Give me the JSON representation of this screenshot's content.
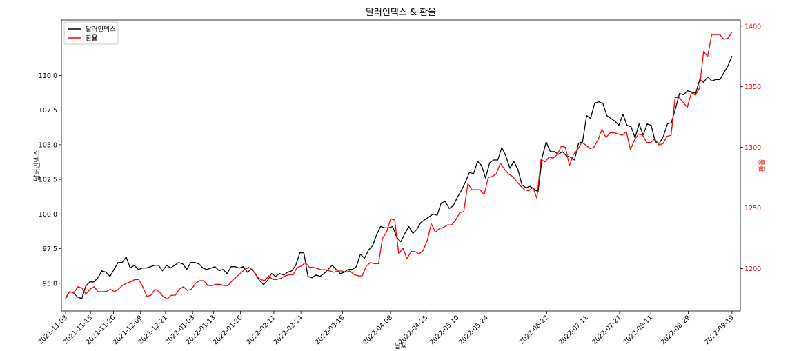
{
  "chart_data": {
    "type": "line",
    "title": "달러인덱스 & 환율",
    "xlabel": "날짜",
    "ylabel_left": "달러인덱스",
    "ylabel_right": "환율",
    "legend": {
      "position": "top-left"
    },
    "ylim_left": [
      93.0,
      114.0
    ],
    "ylim_right": [
      1165,
      1405
    ],
    "yticks_left": [
      "95.0",
      "97.5",
      "100.0",
      "102.5",
      "105.0",
      "107.5",
      "110.0"
    ],
    "yticks_right": [
      "1200",
      "1250",
      "1300",
      "1350",
      "1400"
    ],
    "xticks": [
      "2021-11-03",
      "2021-11-15",
      "2021-11-26",
      "2021-12-09",
      "2021-12-21",
      "2022-01-03",
      "2022-01-13",
      "2022-01-26",
      "2022-02-11",
      "2022-02-24",
      "2022-03-16",
      "2022-04-08",
      "2022-04-25",
      "2022-05-10",
      "2022-05-24",
      "2022-06-22",
      "2022-07-11",
      "2022-07-27",
      "2022-08-11",
      "2022-08-29",
      "2022-09-19"
    ],
    "x_start": "2021-11-01",
    "x_end": "2022-09-23",
    "series": [
      {
        "name": "달러인덱스",
        "color": "#000000",
        "axis": "left",
        "values": [
          93.9,
          94.4,
          94.3,
          94.0,
          93.9,
          94.8,
          95.1,
          95.1,
          95.4,
          95.9,
          95.8,
          95.5,
          96.0,
          96.5,
          96.5,
          96.9,
          96.1,
          96.3,
          96.0,
          96.1,
          96.1,
          96.2,
          96.3,
          96.3,
          95.9,
          96.3,
          96.1,
          96.3,
          96.5,
          96.4,
          96.0,
          96.5,
          96.5,
          96.4,
          96.1,
          96.0,
          96.1,
          96.2,
          95.9,
          96.0,
          95.7,
          96.2,
          96.2,
          96.1,
          96.2,
          95.8,
          96.0,
          95.7,
          95.2,
          94.9,
          95.2,
          95.7,
          95.5,
          95.7,
          95.6,
          95.8,
          95.9,
          96.3,
          97.2,
          97.2,
          95.5,
          95.4,
          95.6,
          95.5,
          95.7,
          96.0,
          96.3,
          96.0,
          95.7,
          95.8,
          96.0,
          96.0,
          96.2,
          97.1,
          96.8,
          97.4,
          97.7,
          98.5,
          99.1,
          99.0,
          99.0,
          99.1,
          98.3,
          98.0,
          98.6,
          99.1,
          98.6,
          98.9,
          99.4,
          99.6,
          99.8,
          100.0,
          99.9,
          100.8,
          100.9,
          100.4,
          100.6,
          101.2,
          101.7,
          102.3,
          103.0,
          102.9,
          103.8,
          103.5,
          102.6,
          103.7,
          103.9,
          103.9,
          104.8,
          104.2,
          103.3,
          103.8,
          103.2,
          102.1,
          101.9,
          102.0,
          101.8,
          101.6,
          104.1,
          105.2,
          104.5,
          104.5,
          104.3,
          104.5,
          104.2,
          104.1,
          103.9,
          105.1,
          105.2,
          107.1,
          106.9,
          108.0,
          108.1,
          108.0,
          107.1,
          106.9,
          106.7,
          106.4,
          107.2,
          106.4,
          106.3,
          105.5,
          106.5,
          105.7,
          106.5,
          106.4,
          105.2,
          105.1,
          105.6,
          106.5,
          106.6,
          107.6,
          108.7,
          108.6,
          108.9,
          108.8,
          108.7,
          109.7,
          109.5,
          109.9,
          109.6,
          109.7,
          109.7,
          110.2,
          110.7,
          111.4
        ]
      },
      {
        "name": "환율",
        "color": "#ff0000",
        "axis": "right",
        "values": [
          1176,
          1181,
          1180,
          1185,
          1184,
          1179,
          1183,
          1185,
          1181,
          1181,
          1181,
          1183,
          1181,
          1183,
          1186,
          1188,
          1189,
          1191,
          1191,
          1185,
          1177,
          1178,
          1183,
          1181,
          1177,
          1175,
          1178,
          1178,
          1183,
          1185,
          1182,
          1183,
          1188,
          1190,
          1190,
          1186,
          1186,
          1187,
          1187,
          1186,
          1186,
          1190,
          1193,
          1196,
          1199,
          1201,
          1199,
          1194,
          1191,
          1190,
          1194,
          1191,
          1191,
          1192,
          1194,
          1195,
          1195,
          1201,
          1202,
          1205,
          1201,
          1201,
          1200,
          1199,
          1199,
          1198,
          1197,
          1198,
          1198,
          1197,
          1198,
          1195,
          1194,
          1194,
          1202,
          1205,
          1204,
          1204,
          1225,
          1230,
          1241,
          1240,
          1212,
          1217,
          1208,
          1214,
          1214,
          1212,
          1215,
          1223,
          1237,
          1230,
          1233,
          1234,
          1236,
          1236,
          1240,
          1246,
          1247,
          1270,
          1265,
          1265,
          1265,
          1261,
          1275,
          1276,
          1278,
          1287,
          1282,
          1278,
          1276,
          1272,
          1268,
          1265,
          1264,
          1267,
          1258,
          1290,
          1288,
          1292,
          1291,
          1294,
          1301,
          1300,
          1285,
          1294,
          1298,
          1304,
          1302,
          1299,
          1300,
          1306,
          1315,
          1308,
          1312,
          1312,
          1311,
          1310,
          1313,
          1298,
          1306,
          1311,
          1310,
          1304,
          1304,
          1307,
          1302,
          1303,
          1309,
          1310,
          1341,
          1341,
          1337,
          1333,
          1345,
          1343,
          1349,
          1379,
          1375,
          1393,
          1393,
          1393,
          1389,
          1390,
          1395
        ]
      }
    ]
  }
}
